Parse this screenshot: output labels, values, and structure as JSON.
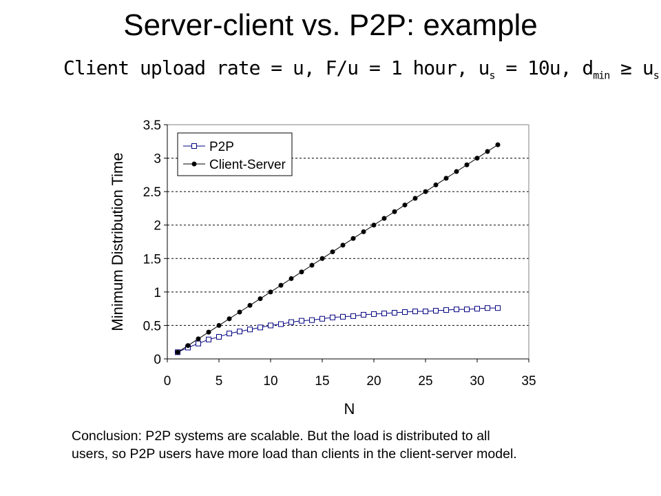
{
  "slide": {
    "title": "Server-client vs. P2P: example",
    "subtitle": {
      "part1": "Client upload rate = u,  F/u = 1 hour,  u",
      "sub1": "s",
      "part2": " = 10u,  d",
      "sub2": "min",
      "part3": " ≥ u",
      "sub3": "s"
    },
    "conclusion_line1": "Conclusion: P2P systems are scalable. But the load is distributed to all",
    "conclusion_line2": "users, so P2P users have more load than clients in the client-server model."
  },
  "chart_data": {
    "type": "line",
    "xlabel": "N",
    "ylabel": "Minimum Distribution Time",
    "xlim": [
      0,
      35
    ],
    "ylim": [
      0,
      3.5
    ],
    "xticks": [
      "0",
      "5",
      "10",
      "15",
      "20",
      "25",
      "30",
      "35"
    ],
    "yticks": [
      "0",
      "0.5",
      "1",
      "1.5",
      "2",
      "2.5",
      "3",
      "3.5"
    ],
    "grid": "horizontal dashed",
    "legend_position": "top-left",
    "x": [
      1,
      2,
      3,
      4,
      5,
      6,
      7,
      8,
      9,
      10,
      11,
      12,
      13,
      14,
      15,
      16,
      17,
      18,
      19,
      20,
      21,
      22,
      23,
      24,
      25,
      26,
      27,
      28,
      29,
      30,
      31,
      32
    ],
    "series": [
      {
        "name": "P2P",
        "marker": "open-square",
        "color": "#000080",
        "values": [
          0.1,
          0.17,
          0.23,
          0.29,
          0.33,
          0.38,
          0.41,
          0.44,
          0.47,
          0.5,
          0.52,
          0.55,
          0.57,
          0.58,
          0.6,
          0.62,
          0.63,
          0.64,
          0.66,
          0.67,
          0.68,
          0.69,
          0.7,
          0.71,
          0.71,
          0.72,
          0.73,
          0.74,
          0.74,
          0.75,
          0.76,
          0.76
        ]
      },
      {
        "name": "Client-Server",
        "marker": "filled-circle",
        "color": "#000000",
        "values": [
          0.1,
          0.2,
          0.3,
          0.4,
          0.5,
          0.6,
          0.7,
          0.8,
          0.9,
          1.0,
          1.1,
          1.2,
          1.3,
          1.4,
          1.5,
          1.6,
          1.7,
          1.8,
          1.9,
          2.0,
          2.1,
          2.2,
          2.3,
          2.4,
          2.5,
          2.6,
          2.7,
          2.8,
          2.9,
          3.0,
          3.1,
          3.2
        ]
      }
    ]
  }
}
